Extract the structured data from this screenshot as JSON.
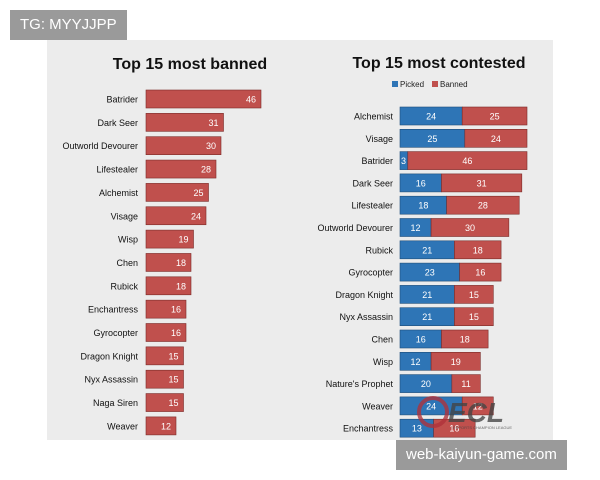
{
  "watermark_top": "TG: MYYJJPP",
  "watermark_bottom": "web-kaiyun-game.com",
  "logo_text": "ECL",
  "logo_subtext": "ESPORTS CHAMPION LEAGUE",
  "colors": {
    "picked": "#2e75b6",
    "banned": "#c0504d",
    "panel": "#ececec"
  },
  "chart_data": [
    {
      "type": "bar",
      "orientation": "horizontal",
      "title": "Top 15 most banned",
      "categories": [
        "Batrider",
        "Dark Seer",
        "Outworld Devourer",
        "Lifestealer",
        "Alchemist",
        "Visage",
        "Wisp",
        "Chen",
        "Rubick",
        "Enchantress",
        "Gyrocopter",
        "Dragon Knight",
        "Nyx Assassin",
        "Naga Siren",
        "Weaver"
      ],
      "values": [
        46,
        31,
        30,
        28,
        25,
        24,
        19,
        18,
        18,
        16,
        16,
        15,
        15,
        15,
        12
      ]
    },
    {
      "type": "bar",
      "orientation": "horizontal",
      "stacked": true,
      "title": "Top 15 most contested",
      "legend": [
        "Picked",
        "Banned"
      ],
      "legend_position": "top",
      "categories": [
        "Alchemist",
        "Visage",
        "Batrider",
        "Dark Seer",
        "Lifestealer",
        "Outworld Devourer",
        "Rubick",
        "Gyrocopter",
        "Dragon Knight",
        "Nyx Assassin",
        "Chen",
        "Wisp",
        "Nature's Prophet",
        "Weaver",
        "Enchantress"
      ],
      "series": [
        {
          "name": "Picked",
          "values": [
            24,
            25,
            3,
            16,
            18,
            12,
            21,
            23,
            21,
            21,
            16,
            12,
            20,
            24,
            13
          ]
        },
        {
          "name": "Banned",
          "values": [
            25,
            24,
            46,
            31,
            28,
            30,
            18,
            16,
            15,
            15,
            18,
            19,
            11,
            12,
            16
          ]
        }
      ]
    }
  ]
}
